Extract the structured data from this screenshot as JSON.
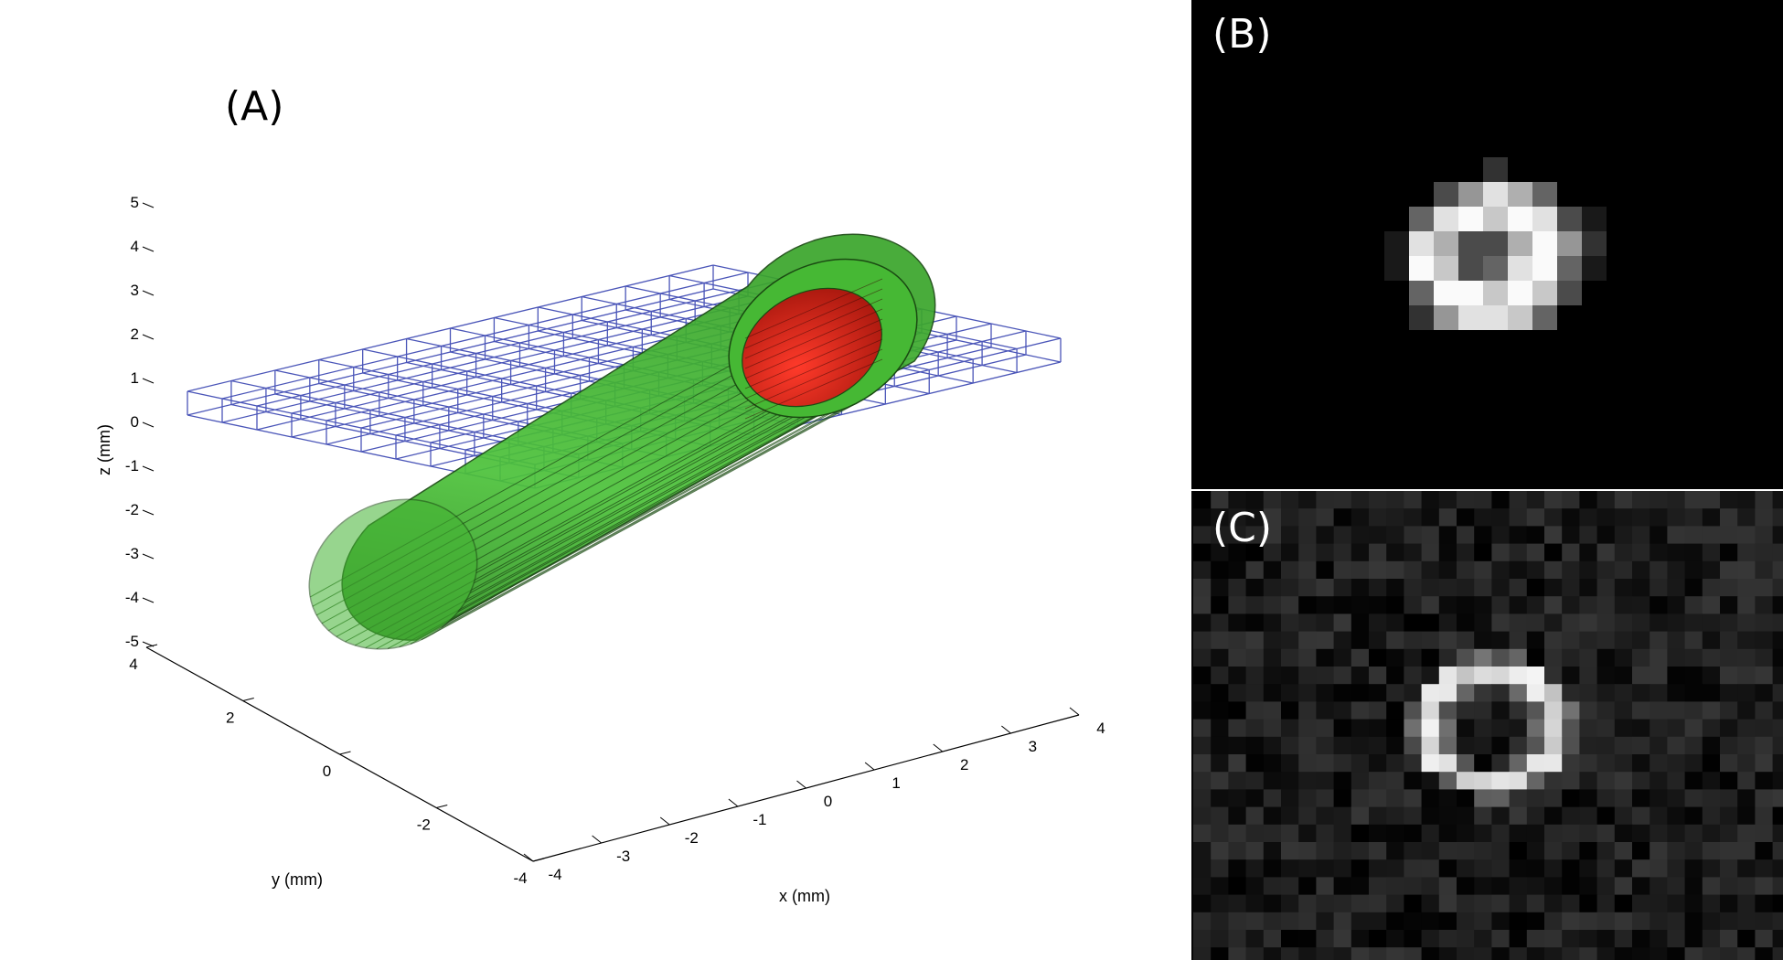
{
  "panels": [
    {
      "label": "(A)",
      "kind": "3d-render"
    },
    {
      "label": "(B)",
      "kind": "image-slice"
    },
    {
      "label": "(C)",
      "kind": "image-slice"
    }
  ],
  "axes": {
    "x": {
      "label": "x (mm)",
      "ticks": [
        "-4",
        "-3",
        "-2",
        "-1",
        "0",
        "1",
        "2",
        "3",
        "4"
      ]
    },
    "y": {
      "label": "y (mm)",
      "ticks": [
        "-4",
        "-2",
        "0",
        "2",
        "4"
      ]
    },
    "z": {
      "label": "z (mm)",
      "ticks": [
        "-5",
        "-4",
        "-3",
        "-2",
        "-1",
        "0",
        "1",
        "2",
        "3",
        "4",
        "5"
      ]
    }
  },
  "colors": {
    "tube_outer": "#3fae2e",
    "tube_inner_wall": "#4cc23a",
    "lumen": "#d42a1c",
    "grid": "#4a55b8",
    "panel_background": "#000000"
  }
}
